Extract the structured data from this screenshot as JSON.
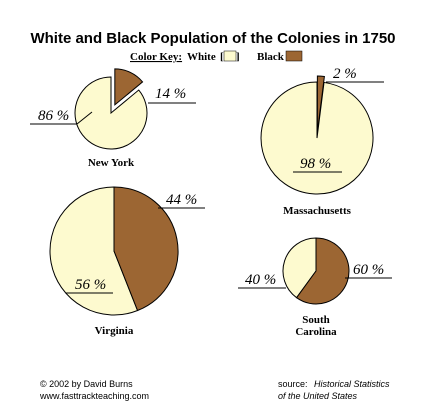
{
  "colors": {
    "white": "#fdfacf",
    "black": "#9c6633",
    "stroke": "#000000"
  },
  "chart_data": {
    "type": "pie",
    "title": "White and Black Population of the Colonies in 1750",
    "legend": {
      "label": "Color Key:",
      "white_label": "White",
      "black_label": "Black",
      "placement": "top-center"
    },
    "colonies": [
      {
        "name": [
          "New York"
        ],
        "white": 86,
        "black": 14,
        "white_label": "86 %",
        "black_label": "14 %"
      },
      {
        "name": [
          "Massachusetts"
        ],
        "white": 98,
        "black": 2,
        "white_label": "98 %",
        "black_label": "2 %"
      },
      {
        "name": [
          "Virginia"
        ],
        "white": 56,
        "black": 44,
        "white_label": "56 %",
        "black_label": "44 %"
      },
      {
        "name": [
          "South",
          "Carolina"
        ],
        "white": 40,
        "black": 60,
        "white_label": "40 %",
        "black_label": "60 %"
      }
    ]
  },
  "footer": {
    "copyright": "© 2002 by David Burns",
    "website": "www.fasttrackteaching.com",
    "source_prefix": "source:",
    "source_title_1": "Historical Statistics",
    "source_title_2": "of the United States"
  }
}
